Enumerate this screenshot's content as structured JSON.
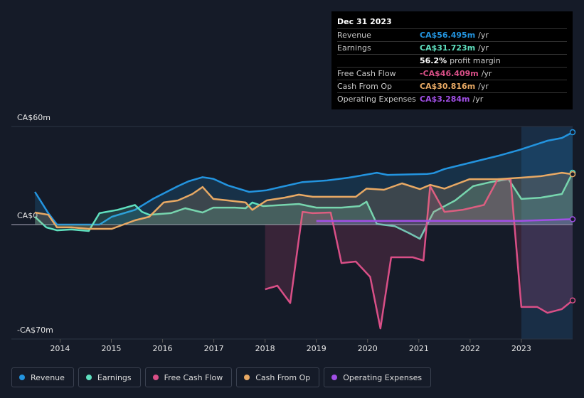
{
  "chart_data": {
    "type": "line",
    "xlim": [
      2013.05,
      2024.0
    ],
    "xticks": [
      2014,
      2015,
      2016,
      2017,
      2018,
      2019,
      2020,
      2021,
      2022,
      2023
    ],
    "ylim": [
      -70,
      60
    ],
    "yticks": [
      {
        "value": 60,
        "label": "CA$60m"
      },
      {
        "value": 0,
        "label": "CA$0"
      },
      {
        "value": -70,
        "label": "-CA$70m"
      }
    ],
    "series": [
      {
        "name": "Revenue",
        "color": "#2394df",
        "x": [
          2013.51,
          2013.77,
          2013.94,
          2014.77,
          2015.01,
          2015.46,
          2015.81,
          2016.3,
          2016.51,
          2016.78,
          2016.99,
          2017.27,
          2017.69,
          2018.03,
          2018.38,
          2018.73,
          2019.21,
          2019.63,
          2020.18,
          2020.39,
          2021.16,
          2021.29,
          2021.5,
          2021.99,
          2022.54,
          2022.96,
          2023.51,
          2023.79,
          2024.0
        ],
        "values": [
          20,
          7,
          0,
          0,
          4.8,
          9,
          15.7,
          23.5,
          26.5,
          29,
          28,
          24,
          20,
          21,
          23.5,
          26,
          27,
          28.7,
          31.7,
          30.4,
          31,
          31.5,
          34,
          37.8,
          42,
          45.7,
          51.3,
          53,
          56.495
        ]
      },
      {
        "name": "Earnings",
        "color": "#5fe0bf",
        "x": [
          2013.51,
          2013.73,
          2013.94,
          2014.22,
          2014.56,
          2014.77,
          2015.12,
          2015.46,
          2015.6,
          2015.74,
          2016.16,
          2016.44,
          2016.78,
          2016.99,
          2017.41,
          2017.62,
          2017.75,
          2017.96,
          2018.66,
          2019.0,
          2019.49,
          2019.84,
          2019.98,
          2020.18,
          2020.53,
          2020.81,
          2021.02,
          2021.16,
          2021.29,
          2021.71,
          2022.06,
          2022.4,
          2022.75,
          2023.0,
          2023.38,
          2023.79,
          2024.0
        ],
        "values": [
          4.8,
          -1.7,
          -3.5,
          -3,
          -3.9,
          7,
          9,
          12,
          7.8,
          6,
          7,
          10,
          7.4,
          10.4,
          10.4,
          10,
          13.5,
          11.3,
          12.6,
          10.4,
          10.4,
          11.3,
          14,
          0.4,
          -1,
          -5.2,
          -8.7,
          0,
          7.8,
          14.8,
          23.5,
          26,
          27.8,
          15.7,
          16.5,
          18.7,
          31.723
        ]
      },
      {
        "name": "Free Cash Flow",
        "color": "#d94f87",
        "x": [
          2018.0,
          2018.24,
          2018.49,
          2018.73,
          2018.93,
          2019.28,
          2019.49,
          2019.77,
          2020.05,
          2020.25,
          2020.46,
          2020.88,
          2021.09,
          2021.22,
          2021.5,
          2021.85,
          2022.27,
          2022.54,
          2022.79,
          2023.0,
          2023.31,
          2023.51,
          2023.79,
          2024.0
        ],
        "values": [
          -39.6,
          -37.4,
          -48,
          7.8,
          7,
          7.4,
          -23.5,
          -22.6,
          -32,
          -63.5,
          -20,
          -20,
          -22,
          23.5,
          7.8,
          9,
          12,
          27.8,
          27.8,
          -50.4,
          -50.4,
          -54,
          -51.7,
          -46.409
        ]
      },
      {
        "name": "Cash From Op",
        "color": "#e8a964",
        "x": [
          2013.51,
          2013.77,
          2013.94,
          2014.22,
          2014.56,
          2015.01,
          2015.46,
          2015.74,
          2016.02,
          2016.3,
          2016.58,
          2016.78,
          2016.99,
          2017.27,
          2017.62,
          2017.75,
          2018.03,
          2018.38,
          2018.66,
          2018.93,
          2019.49,
          2019.77,
          2019.98,
          2020.32,
          2020.67,
          2021.02,
          2021.22,
          2021.5,
          2021.99,
          2022.54,
          2023.0,
          2023.38,
          2023.79,
          2024.0
        ],
        "values": [
          7.4,
          6,
          -1.7,
          -1.7,
          -2.6,
          -2.6,
          2.6,
          4.8,
          13.5,
          14.8,
          18.7,
          23,
          15.7,
          14.8,
          13.5,
          9,
          14.8,
          16.5,
          18.3,
          17,
          17,
          17,
          22,
          21.3,
          25.2,
          21.7,
          24.3,
          22,
          27.8,
          27.8,
          28.7,
          29.6,
          31.7,
          30.816
        ]
      },
      {
        "name": "Operating Expenses",
        "color": "#a14fe6",
        "x": [
          2019.0,
          2021.16,
          2023.0,
          2024.0
        ],
        "values": [
          2.2,
          2.3,
          2.3,
          3.284
        ]
      }
    ]
  },
  "tooltip": {
    "date": "Dec 31 2023",
    "rows": [
      {
        "label": "Revenue",
        "value": "CA$56.495m",
        "unit": "/yr"
      },
      {
        "label": "Earnings",
        "value": "CA$31.723m",
        "unit": "/yr"
      },
      {
        "label": "",
        "value": "56.2%",
        "unit": "profit margin"
      },
      {
        "label": "Free Cash Flow",
        "value": "-CA$46.409m",
        "unit": "/yr"
      },
      {
        "label": "Cash From Op",
        "value": "CA$30.816m",
        "unit": "/yr"
      },
      {
        "label": "Operating Expenses",
        "value": "CA$3.284m",
        "unit": "/yr"
      }
    ]
  }
}
